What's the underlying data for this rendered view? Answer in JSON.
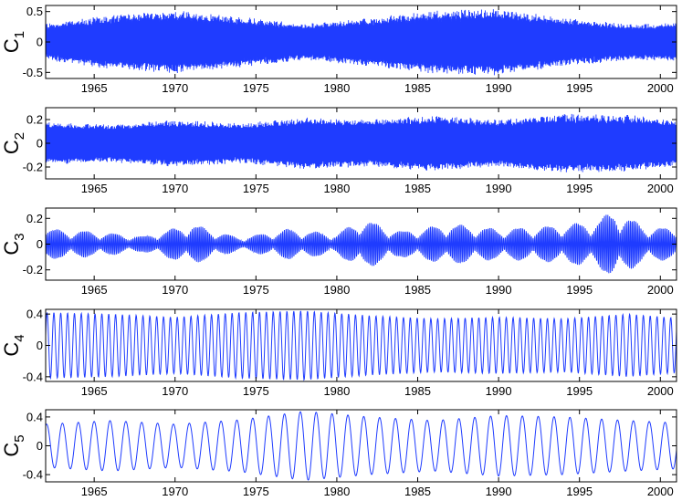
{
  "figure": {
    "background": "#ffffff",
    "line_color": "#1f3cff"
  },
  "chart_data": [
    {
      "type": "line",
      "series_label": "C",
      "series_sub": "1",
      "xlim": [
        1962,
        2001
      ],
      "ylim": [
        -0.6,
        0.6
      ],
      "xticks": [
        1965,
        1970,
        1975,
        1980,
        1985,
        1990,
        1995,
        2000
      ],
      "yticks": [
        -0.5,
        0,
        0.5
      ],
      "ytick_labels": [
        "-0.5",
        "0",
        "0.5"
      ],
      "envelope_x": [
        1962,
        1966,
        1970,
        1974,
        1978,
        1982,
        1986,
        1990,
        1994,
        1998,
        2001
      ],
      "envelope_y": [
        0.3,
        0.45,
        0.52,
        0.42,
        0.3,
        0.4,
        0.52,
        0.55,
        0.4,
        0.3,
        0.32
      ],
      "cycles_per_year": 12,
      "style": "dense"
    },
    {
      "type": "line",
      "series_label": "C",
      "series_sub": "2",
      "xlim": [
        1962,
        2001
      ],
      "ylim": [
        -0.3,
        0.3
      ],
      "xticks": [
        1965,
        1970,
        1975,
        1980,
        1985,
        1990,
        1995,
        2000
      ],
      "yticks": [
        -0.2,
        0,
        0.2
      ],
      "ytick_labels": [
        "-0.2",
        "0",
        "0.2"
      ],
      "envelope_x": [
        1962,
        1966,
        1970,
        1974,
        1978,
        1982,
        1986,
        1990,
        1994,
        1998,
        2001
      ],
      "envelope_y": [
        0.18,
        0.16,
        0.2,
        0.17,
        0.22,
        0.2,
        0.24,
        0.2,
        0.25,
        0.24,
        0.2
      ],
      "cycles_per_year": 6,
      "style": "dense"
    },
    {
      "type": "line",
      "series_label": "C",
      "series_sub": "3",
      "xlim": [
        1962,
        2001
      ],
      "ylim": [
        -0.28,
        0.28
      ],
      "xticks": [
        1965,
        1970,
        1975,
        1980,
        1985,
        1990,
        1995,
        2000
      ],
      "yticks": [
        -0.2,
        0,
        0.2
      ],
      "ytick_labels": [
        "-0.2",
        "0",
        "0.2"
      ],
      "envelope_x": [
        1962,
        1965,
        1968,
        1971,
        1974,
        1977,
        1980,
        1981.5,
        1984,
        1987,
        1990,
        1993,
        1996,
        1997.2,
        1999,
        2001
      ],
      "envelope_y": [
        0.12,
        0.1,
        0.06,
        0.16,
        0.05,
        0.12,
        0.08,
        0.2,
        0.1,
        0.16,
        0.12,
        0.14,
        0.18,
        0.27,
        0.14,
        0.12
      ],
      "cycles_per_year": 3,
      "style": "modulated"
    },
    {
      "type": "line",
      "series_label": "C",
      "series_sub": "4",
      "xlim": [
        1962,
        2001
      ],
      "ylim": [
        -0.46,
        0.46
      ],
      "xticks": [
        1965,
        1970,
        1975,
        1980,
        1985,
        1990,
        1995,
        2000
      ],
      "yticks": [
        -0.4,
        0,
        0.4
      ],
      "ytick_labels": [
        "-0.4",
        "0",
        "0.4"
      ],
      "envelope_x": [
        1962,
        1966,
        1970,
        1974,
        1978,
        1982,
        1986,
        1990,
        1994,
        1998,
        2001
      ],
      "envelope_y": [
        0.42,
        0.4,
        0.36,
        0.42,
        0.44,
        0.38,
        0.34,
        0.36,
        0.34,
        0.4,
        0.35
      ],
      "cycles_per_year": 2,
      "style": "smooth"
    },
    {
      "type": "line",
      "series_label": "C",
      "series_sub": "5",
      "xlim": [
        1962,
        2001
      ],
      "ylim": [
        -0.5,
        0.5
      ],
      "xticks": [
        1965,
        1970,
        1975,
        1980,
        1985,
        1990,
        1995,
        2000
      ],
      "yticks": [
        -0.4,
        0,
        0.4
      ],
      "ytick_labels": [
        "-0.4",
        "0",
        "0.4"
      ],
      "envelope_x": [
        1962,
        1966,
        1970,
        1974,
        1978,
        1982,
        1986,
        1990,
        1994,
        1998,
        2001
      ],
      "envelope_y": [
        0.3,
        0.35,
        0.3,
        0.36,
        0.48,
        0.4,
        0.35,
        0.42,
        0.4,
        0.35,
        0.32
      ],
      "cycles_per_year": 1,
      "style": "smooth"
    }
  ]
}
